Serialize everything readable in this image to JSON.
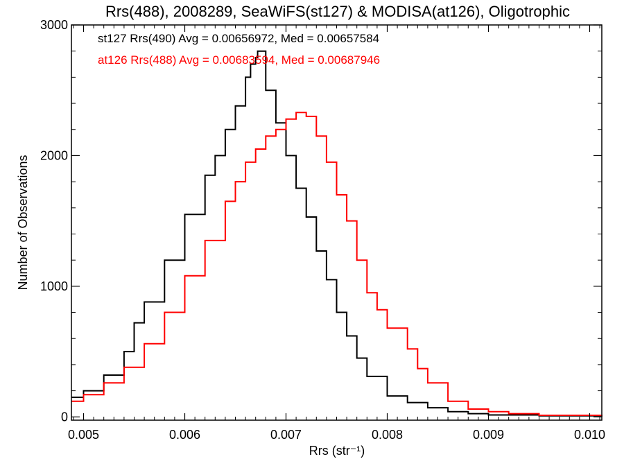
{
  "chart_data": {
    "type": "histogram",
    "title": "Rrs(488), 2008289, SeaWiFS(st127) & MODISA(at126), Oligotrophic",
    "xlabel": "Rrs (str⁻¹)",
    "ylabel": "Number of Observations",
    "xlim": [
      0.00488,
      0.01012
    ],
    "ylim": [
      -25,
      3000
    ],
    "xticks": [
      0.005,
      0.006,
      0.007,
      0.008,
      0.009,
      0.01
    ],
    "xtick_labels": [
      "0.005",
      "0.006",
      "0.007",
      "0.008",
      "0.009",
      "0.010"
    ],
    "yticks": [
      0,
      1000,
      2000,
      3000
    ],
    "ytick_labels": [
      "0",
      "1000",
      "2000",
      "3000"
    ],
    "grid": false,
    "legend_placement": "top-left",
    "series": [
      {
        "name": "st127",
        "legend": "st127 Rrs(490) Avg = 0.00656972, Med = 0.00657584",
        "color": "#000000",
        "x": [
          0.00488,
          0.005,
          0.0052,
          0.0054,
          0.0055,
          0.0056,
          0.0058,
          0.006,
          0.0062,
          0.0063,
          0.0064,
          0.0065,
          0.0066,
          0.00665,
          0.0067,
          0.00672,
          0.0068,
          0.0069,
          0.007,
          0.0071,
          0.0072,
          0.0073,
          0.0074,
          0.0075,
          0.0076,
          0.0077,
          0.0078,
          0.008,
          0.0082,
          0.0084,
          0.0086,
          0.0088,
          0.009,
          0.0095,
          0.01012
        ],
        "y": [
          150,
          200,
          320,
          500,
          720,
          880,
          1200,
          1550,
          1850,
          2000,
          2200,
          2380,
          2600,
          2700,
          2750,
          2800,
          2500,
          2250,
          2000,
          1750,
          1530,
          1270,
          1050,
          800,
          620,
          450,
          310,
          160,
          110,
          70,
          40,
          25,
          15,
          8,
          3
        ]
      },
      {
        "name": "at126",
        "legend": "at126 Rrs(488) Avg = 0.00683594, Med = 0.00687946",
        "color": "#ff0000",
        "x": [
          0.00488,
          0.005,
          0.0052,
          0.0054,
          0.0056,
          0.0058,
          0.006,
          0.0062,
          0.0064,
          0.0065,
          0.0066,
          0.0067,
          0.0068,
          0.0069,
          0.007,
          0.0071,
          0.0072,
          0.0073,
          0.0074,
          0.0075,
          0.0076,
          0.0077,
          0.0078,
          0.0079,
          0.008,
          0.0082,
          0.0083,
          0.0084,
          0.0086,
          0.0088,
          0.009,
          0.0092,
          0.0095,
          0.01012
        ],
        "y": [
          120,
          170,
          260,
          380,
          560,
          800,
          1080,
          1350,
          1650,
          1800,
          1950,
          2050,
          2150,
          2200,
          2280,
          2330,
          2300,
          2150,
          1950,
          1700,
          1500,
          1200,
          950,
          820,
          680,
          520,
          370,
          260,
          120,
          60,
          40,
          25,
          12,
          5
        ]
      }
    ]
  }
}
